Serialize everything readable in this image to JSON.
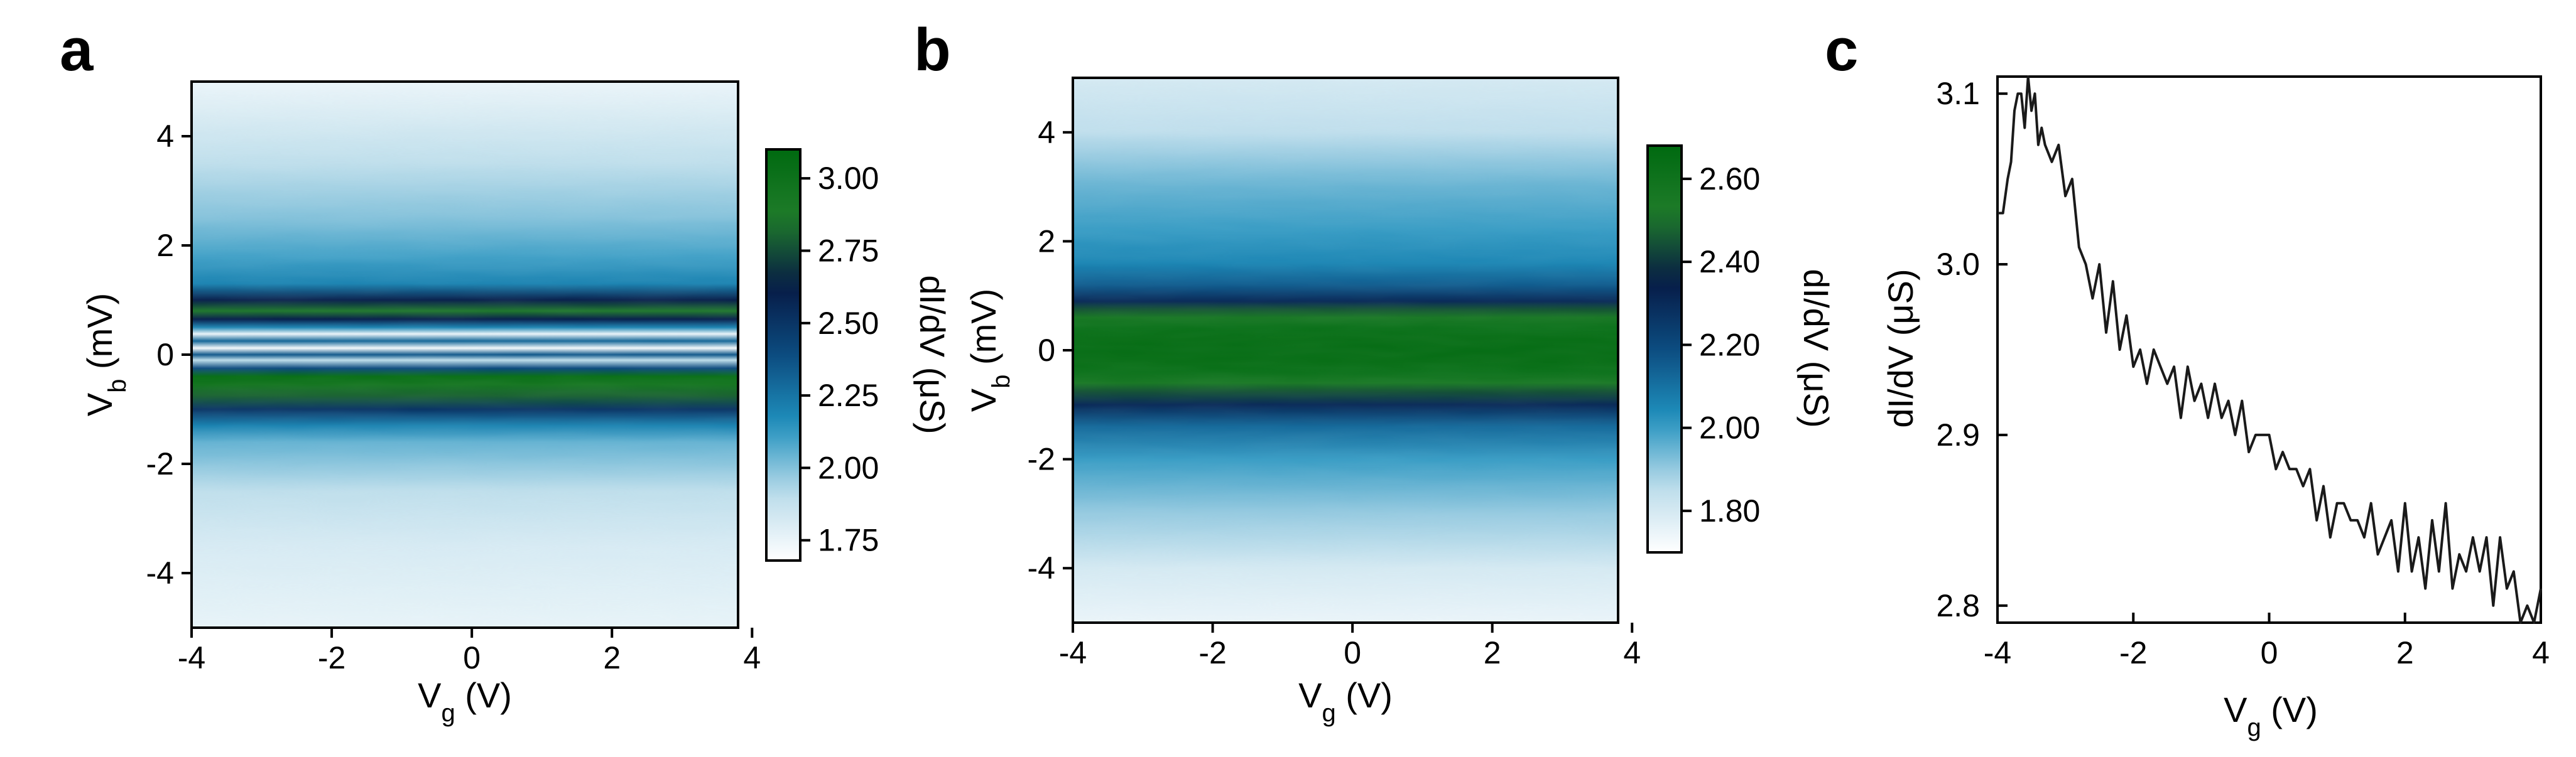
{
  "figure": {
    "panels": [
      {
        "letter": "a"
      },
      {
        "letter": "b"
      },
      {
        "letter": "c"
      }
    ]
  },
  "colormap": [
    "#ffffff",
    "#b9dbea",
    "#1f90bd",
    "#0c4c80",
    "#071a45",
    "#1f7c2a",
    "#006a10"
  ],
  "chart_data": [
    {
      "panel": "a",
      "type": "heatmap",
      "xlabel": {
        "main": "V",
        "sub": "g",
        "unit": " (V)"
      },
      "ylabel": {
        "main": "V",
        "sub": "b",
        "unit": " (mV)"
      },
      "xlim": [
        -4,
        3.8
      ],
      "ylim": [
        -5,
        5
      ],
      "xticks": [
        -4,
        -2,
        0,
        2,
        4
      ],
      "xtick_labels": [
        "-4",
        "-2",
        "0",
        "2",
        "4"
      ],
      "yticks": [
        -4,
        -2,
        0,
        2,
        4
      ],
      "ytick_labels": [
        "-4",
        "-2",
        "0",
        "2",
        "4"
      ],
      "colorbar": {
        "label": "dI/dV (μS)",
        "range": [
          1.68,
          3.1
        ],
        "ticks": [
          1.75,
          2.0,
          2.25,
          2.5,
          2.75,
          3.0
        ],
        "tick_labels": [
          "1.75",
          "2.00",
          "2.25",
          "2.50",
          "2.75",
          "3.00"
        ]
      },
      "profile_vb": [
        -5,
        -4.5,
        -3.5,
        -2.5,
        -1.6,
        -1.3,
        -1.0,
        -0.75,
        -0.55,
        -0.4,
        -0.25,
        -0.1,
        0.0,
        0.12,
        0.25,
        0.38,
        0.5,
        0.65,
        0.8,
        1.0,
        1.3,
        1.8,
        2.5,
        3.5,
        4.5,
        5
      ],
      "profile_didv": [
        1.76,
        1.78,
        1.82,
        1.9,
        2.05,
        2.2,
        2.5,
        2.8,
        2.95,
        3.05,
        2.4,
        1.9,
        2.35,
        1.72,
        2.3,
        1.75,
        2.2,
        2.6,
        2.85,
        2.6,
        2.2,
        2.1,
        2.0,
        1.9,
        1.8,
        1.75
      ]
    },
    {
      "panel": "b",
      "type": "heatmap",
      "xlabel": {
        "main": "V",
        "sub": "g",
        "unit": " (V)"
      },
      "ylabel": {
        "main": "V",
        "sub": "b",
        "unit": " (mV)"
      },
      "xlim": [
        -4,
        3.8
      ],
      "ylim": [
        -5,
        5
      ],
      "xticks": [
        -4,
        -2,
        0,
        2,
        4
      ],
      "xtick_labels": [
        "-4",
        "-2",
        "0",
        "2",
        "4"
      ],
      "yticks": [
        -4,
        -2,
        0,
        2,
        4
      ],
      "ytick_labels": [
        "-4",
        "-2",
        "0",
        "2",
        "4"
      ],
      "colorbar": {
        "label": "dI/dV (μS)",
        "range": [
          1.7,
          2.68
        ],
        "ticks": [
          1.8,
          2.0,
          2.2,
          2.4,
          2.6
        ],
        "tick_labels": [
          "1.80",
          "2.00",
          "2.20",
          "2.40",
          "2.60"
        ]
      },
      "profile_vb": [
        -5,
        -4,
        -3,
        -2,
        -1.4,
        -1.0,
        -0.75,
        -0.6,
        -0.4,
        -0.2,
        0.0,
        0.2,
        0.4,
        0.6,
        0.75,
        0.9,
        1.2,
        1.6,
        2.2,
        3,
        4,
        5
      ],
      "profile_didv": [
        1.75,
        1.8,
        1.9,
        2.0,
        2.12,
        2.3,
        2.45,
        2.55,
        2.62,
        2.64,
        2.65,
        2.64,
        2.62,
        2.55,
        2.45,
        2.3,
        2.15,
        2.05,
        2.0,
        1.95,
        1.85,
        1.8
      ]
    },
    {
      "panel": "c",
      "type": "line",
      "xlabel": {
        "main": "V",
        "sub": "g",
        "unit": " (V)"
      },
      "ylabel": {
        "main": "dI/dV (μS)"
      },
      "xlim": [
        -4,
        4
      ],
      "ylim": [
        2.79,
        3.11
      ],
      "xticks": [
        -4,
        -2,
        0,
        2,
        4
      ],
      "xtick_labels": [
        "-4",
        "-2",
        "0",
        "2",
        "4"
      ],
      "yticks": [
        2.8,
        2.9,
        3.0,
        3.1
      ],
      "ytick_labels": [
        "2.8",
        "2.9",
        "3.0",
        "3.1"
      ],
      "series": [
        {
          "x": [
            -4.0,
            -3.92,
            -3.85,
            -3.8,
            -3.75,
            -3.7,
            -3.65,
            -3.6,
            -3.55,
            -3.5,
            -3.45,
            -3.4,
            -3.35,
            -3.3,
            -3.2,
            -3.1,
            -3.0,
            -2.9,
            -2.8,
            -2.7,
            -2.6,
            -2.5,
            -2.4,
            -2.3,
            -2.2,
            -2.1,
            -2.0,
            -1.9,
            -1.8,
            -1.7,
            -1.6,
            -1.5,
            -1.4,
            -1.3,
            -1.2,
            -1.1,
            -1.0,
            -0.9,
            -0.8,
            -0.7,
            -0.6,
            -0.5,
            -0.4,
            -0.3,
            -0.2,
            -0.1,
            0.0,
            0.1,
            0.2,
            0.3,
            0.4,
            0.5,
            0.6,
            0.7,
            0.8,
            0.9,
            1.0,
            1.1,
            1.2,
            1.3,
            1.4,
            1.5,
            1.6,
            1.7,
            1.8,
            1.9,
            2.0,
            2.1,
            2.2,
            2.3,
            2.4,
            2.5,
            2.6,
            2.7,
            2.8,
            2.9,
            3.0,
            3.1,
            3.2,
            3.3,
            3.4,
            3.5,
            3.6,
            3.7,
            3.8,
            3.9,
            4.0
          ],
          "y": [
            3.03,
            3.03,
            3.05,
            3.06,
            3.09,
            3.1,
            3.1,
            3.08,
            3.11,
            3.09,
            3.1,
            3.07,
            3.08,
            3.07,
            3.06,
            3.07,
            3.04,
            3.05,
            3.01,
            3.0,
            2.98,
            3.0,
            2.96,
            2.99,
            2.95,
            2.97,
            2.94,
            2.95,
            2.93,
            2.95,
            2.94,
            2.93,
            2.94,
            2.91,
            2.94,
            2.92,
            2.93,
            2.91,
            2.93,
            2.91,
            2.92,
            2.9,
            2.92,
            2.89,
            2.9,
            2.9,
            2.9,
            2.88,
            2.89,
            2.88,
            2.88,
            2.87,
            2.88,
            2.85,
            2.87,
            2.84,
            2.86,
            2.86,
            2.85,
            2.85,
            2.84,
            2.86,
            2.83,
            2.84,
            2.85,
            2.82,
            2.86,
            2.82,
            2.84,
            2.81,
            2.85,
            2.82,
            2.86,
            2.81,
            2.83,
            2.82,
            2.84,
            2.82,
            2.84,
            2.8,
            2.84,
            2.81,
            2.82,
            2.79,
            2.8,
            2.79,
            2.81
          ]
        }
      ]
    }
  ]
}
